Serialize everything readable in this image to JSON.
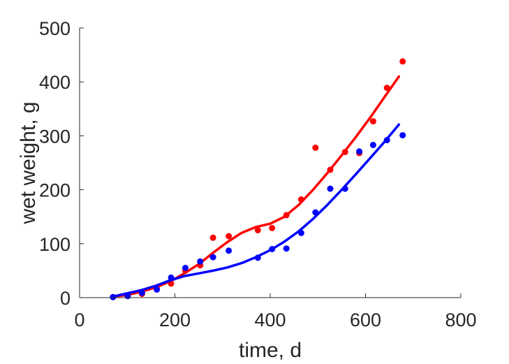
{
  "chart_data": {
    "type": "scatter",
    "title": "",
    "xlabel": "time, d",
    "ylabel": "wet weight, g",
    "xlim": [
      0,
      800
    ],
    "ylim": [
      0,
      500
    ],
    "xticks": [
      0,
      200,
      400,
      600,
      800
    ],
    "yticks": [
      0,
      100,
      200,
      300,
      400,
      500
    ],
    "xtick_labels": [
      "0",
      "200",
      "400",
      "600",
      "800"
    ],
    "ytick_labels": [
      "0",
      "100",
      "200",
      "300",
      "400",
      "500"
    ],
    "grid": false,
    "legend": "none",
    "series": [
      {
        "color": "#ff0000",
        "points": [
          [
            70,
            1
          ],
          [
            101,
            3
          ],
          [
            131,
            7
          ],
          [
            162,
            16
          ],
          [
            192,
            26
          ],
          [
            222,
            50
          ],
          [
            253,
            60
          ],
          [
            280,
            111
          ],
          [
            313,
            114
          ],
          [
            374,
            125
          ],
          [
            404,
            129
          ],
          [
            434,
            153
          ],
          [
            465,
            182
          ],
          [
            495,
            278
          ],
          [
            526,
            237
          ],
          [
            557,
            270
          ],
          [
            587,
            268
          ],
          [
            616,
            327
          ],
          [
            645,
            389
          ],
          [
            678,
            438
          ]
        ],
        "curve": [
          [
            70,
            2
          ],
          [
            100,
            5
          ],
          [
            130,
            11
          ],
          [
            160,
            19
          ],
          [
            190,
            30
          ],
          [
            220,
            45
          ],
          [
            250,
            62
          ],
          [
            280,
            83
          ],
          [
            310,
            103
          ],
          [
            340,
            120
          ],
          [
            370,
            131
          ],
          [
            400,
            137
          ],
          [
            430,
            150
          ],
          [
            460,
            172
          ],
          [
            490,
            200
          ],
          [
            520,
            231
          ],
          [
            550,
            264
          ],
          [
            580,
            298
          ],
          [
            610,
            334
          ],
          [
            640,
            372
          ],
          [
            670,
            410
          ]
        ]
      },
      {
        "color": "#0000ff",
        "points": [
          [
            70,
            1
          ],
          [
            101,
            3
          ],
          [
            131,
            9
          ],
          [
            162,
            15
          ],
          [
            192,
            37
          ],
          [
            222,
            55
          ],
          [
            253,
            67
          ],
          [
            280,
            75
          ],
          [
            313,
            87
          ],
          [
            374,
            74
          ],
          [
            404,
            90
          ],
          [
            434,
            91
          ],
          [
            465,
            120
          ],
          [
            495,
            158
          ],
          [
            526,
            202
          ],
          [
            557,
            202
          ],
          [
            587,
            271
          ],
          [
            616,
            283
          ],
          [
            645,
            292
          ],
          [
            678,
            301
          ]
        ],
        "curve": [
          [
            70,
            2
          ],
          [
            100,
            8
          ],
          [
            130,
            14
          ],
          [
            160,
            22
          ],
          [
            190,
            32
          ],
          [
            220,
            40
          ],
          [
            250,
            45
          ],
          [
            280,
            50
          ],
          [
            310,
            56
          ],
          [
            340,
            64
          ],
          [
            370,
            75
          ],
          [
            400,
            88
          ],
          [
            430,
            104
          ],
          [
            460,
            123
          ],
          [
            490,
            146
          ],
          [
            520,
            172
          ],
          [
            550,
            200
          ],
          [
            580,
            229
          ],
          [
            610,
            259
          ],
          [
            640,
            289
          ],
          [
            670,
            321
          ]
        ]
      }
    ]
  }
}
